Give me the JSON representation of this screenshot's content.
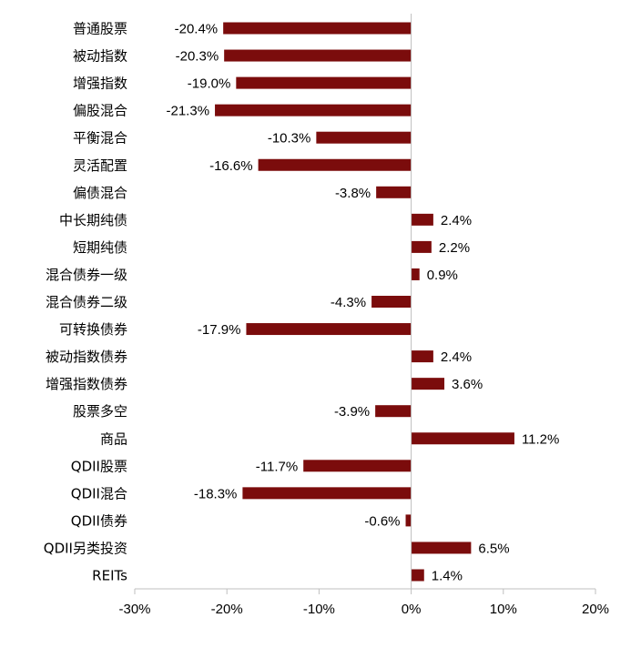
{
  "chart_data": {
    "type": "bar",
    "orientation": "horizontal",
    "categories": [
      "普通股票",
      "被动指数",
      "增强指数",
      "偏股混合",
      "平衡混合",
      "灵活配置",
      "偏债混合",
      "中长期纯债",
      "短期纯债",
      "混合债券一级",
      "混合债券二级",
      "可转换债券",
      "被动指数债券",
      "增强指数债券",
      "股票多空",
      "商品",
      "QDII股票",
      "QDII混合",
      "QDII债券",
      "QDII另类投资",
      "REITs"
    ],
    "values": [
      -20.4,
      -20.3,
      -19.0,
      -21.3,
      -10.3,
      -16.6,
      -3.8,
      2.4,
      2.2,
      0.9,
      -4.3,
      -17.9,
      2.4,
      3.6,
      -3.9,
      11.2,
      -11.7,
      -18.3,
      -0.6,
      6.5,
      1.4
    ],
    "value_labels": [
      "-20.4%",
      "-20.3%",
      "-19.0%",
      "-21.3%",
      "-10.3%",
      "-16.6%",
      "-3.8%",
      "2.4%",
      "2.2%",
      "0.9%",
      "-4.3%",
      "-17.9%",
      "2.4%",
      "3.6%",
      "-3.9%",
      "11.2%",
      "-11.7%",
      "-18.3%",
      "-0.6%",
      "6.5%",
      "1.4%"
    ],
    "xlim": [
      -30,
      20
    ],
    "x_ticks": [
      -30,
      -20,
      -10,
      0,
      10,
      20
    ],
    "x_tick_labels": [
      "-30%",
      "-20%",
      "-10%",
      "0%",
      "10%",
      "20%"
    ],
    "bar_color": "#7B0C0C",
    "axis_color": "#BFBFBF",
    "grid": false,
    "legend": "none"
  }
}
